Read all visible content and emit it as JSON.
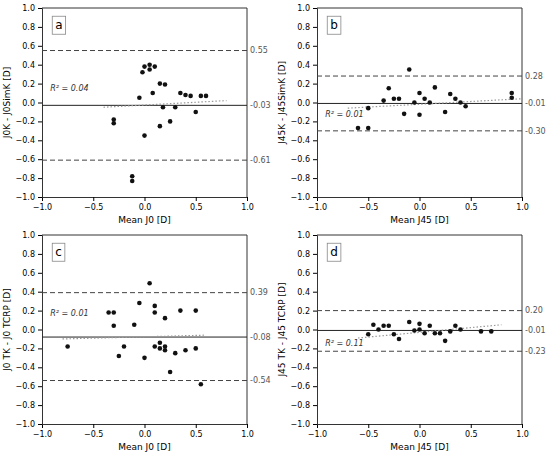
{
  "chart_data": [
    {
      "type": "scatter",
      "title": "a",
      "x_label": "Mean J0 [D]",
      "y_label": "J0K - J0SimK [D]",
      "x": [
        -0.3,
        -0.3,
        -0.05,
        -0.02,
        0.0,
        0.05,
        0.05,
        0.08,
        0.1,
        0.15,
        0.15,
        0.18,
        0.2,
        0.25,
        0.3,
        0.35,
        0.4,
        0.45,
        0.5,
        0.55,
        0.6,
        -0.12,
        -0.12,
        0.0
      ],
      "values": [
        -0.18,
        -0.22,
        0.05,
        0.32,
        0.38,
        0.4,
        0.35,
        0.1,
        0.38,
        0.2,
        -0.25,
        -0.05,
        0.19,
        -0.2,
        -0.05,
        0.1,
        0.08,
        0.07,
        -0.1,
        0.07,
        0.07,
        -0.78,
        -0.83,
        -0.35
      ],
      "color": "#111111",
      "reference_lines": [
        {
          "value": 0.55,
          "label": "0.55",
          "line_style": "dashed",
          "color": "#444444"
        },
        {
          "value": -0.03,
          "label": "-0.03",
          "line_style": "solid",
          "color": "#222222"
        },
        {
          "value": -0.61,
          "label": "-0.61",
          "line_style": "dashed",
          "color": "#444444"
        }
      ],
      "trend": {
        "x": [
          -0.4,
          0.8
        ],
        "values": [
          -0.05,
          0.02
        ],
        "line_style": "dotted",
        "color": "#999999"
      },
      "annotations": [
        {
          "text": "R² = 0.04",
          "x": -0.92,
          "y": 0.12
        }
      ],
      "xlim": [
        -1.0,
        1.0
      ],
      "ylim": [
        -1.0,
        1.0
      ],
      "xticks": [
        {
          "value": -1.0,
          "label": "−1.0"
        },
        {
          "value": -0.5,
          "label": "−0.5"
        },
        {
          "value": 0.0,
          "label": "0.0"
        },
        {
          "value": 0.5,
          "label": "0.5"
        },
        {
          "value": 1.0,
          "label": "1.0"
        }
      ],
      "yticks": [
        {
          "value": -1.0,
          "label": "−1.0"
        },
        {
          "value": -0.8,
          "label": "−0.8"
        },
        {
          "value": -0.6,
          "label": "−0.6"
        },
        {
          "value": -0.4,
          "label": "−0.4"
        },
        {
          "value": -0.2,
          "label": "−0.2"
        },
        {
          "value": 0.0,
          "label": "0.0"
        },
        {
          "value": 0.2,
          "label": "0.2"
        },
        {
          "value": 0.4,
          "label": "0.4"
        },
        {
          "value": 0.6,
          "label": "0.6"
        },
        {
          "value": 0.8,
          "label": "0.8"
        },
        {
          "value": 1.0,
          "label": "1.0"
        }
      ],
      "grid": false
    },
    {
      "type": "scatter",
      "title": "b",
      "x_label": "Mean J45 [D]",
      "y_label": "J45K - J45SimK [D]",
      "x": [
        -0.6,
        -0.5,
        -0.5,
        -0.35,
        -0.3,
        -0.25,
        -0.2,
        -0.15,
        -0.1,
        -0.05,
        0.0,
        0.0,
        0.05,
        0.1,
        0.15,
        0.25,
        0.3,
        0.35,
        0.4,
        0.45,
        0.9,
        0.9
      ],
      "values": [
        -0.27,
        -0.27,
        -0.06,
        0.02,
        0.15,
        0.04,
        0.04,
        -0.12,
        0.35,
        0.0,
        -0.13,
        0.1,
        0.04,
        0.0,
        0.16,
        -0.1,
        0.09,
        0.04,
        0.0,
        -0.04,
        0.1,
        0.05
      ],
      "color": "#111111",
      "reference_lines": [
        {
          "value": 0.28,
          "label": "0.28",
          "line_style": "dashed",
          "color": "#444444"
        },
        {
          "value": -0.01,
          "label": "-0.01",
          "line_style": "solid",
          "color": "#222222"
        },
        {
          "value": -0.3,
          "label": "-0.30",
          "line_style": "dashed",
          "color": "#444444"
        }
      ],
      "trend": {
        "x": [
          -0.7,
          1.0
        ],
        "values": [
          -0.06,
          0.04
        ],
        "line_style": "dotted",
        "color": "#999999"
      },
      "annotations": [
        {
          "text": "R² = 0.01",
          "x": -0.92,
          "y": -0.15
        }
      ],
      "xlim": [
        -1.0,
        1.0
      ],
      "ylim": [
        -1.0,
        1.0
      ],
      "xticks": [
        {
          "value": -1.0,
          "label": "−1.0"
        },
        {
          "value": -0.5,
          "label": "−0.5"
        },
        {
          "value": 0.0,
          "label": "0.0"
        },
        {
          "value": 0.5,
          "label": "0.5"
        },
        {
          "value": 1.0,
          "label": "1.0"
        }
      ],
      "yticks": [
        {
          "value": -1.0,
          "label": "−1.0"
        },
        {
          "value": -0.8,
          "label": "−0.8"
        },
        {
          "value": -0.6,
          "label": "−0.6"
        },
        {
          "value": -0.4,
          "label": "−0.4"
        },
        {
          "value": -0.2,
          "label": "−0.2"
        },
        {
          "value": 0.0,
          "label": "0.0"
        },
        {
          "value": 0.2,
          "label": "0.2"
        },
        {
          "value": 0.4,
          "label": "0.4"
        },
        {
          "value": 0.6,
          "label": "0.6"
        },
        {
          "value": 0.8,
          "label": "0.8"
        },
        {
          "value": 1.0,
          "label": "1.0"
        }
      ],
      "grid": false
    },
    {
      "type": "scatter",
      "title": "c",
      "x_label": "Mean J0 [D]",
      "y_label": "J0 TK - J0 TCRP [D]",
      "x": [
        -0.75,
        -0.35,
        -0.3,
        -0.3,
        -0.25,
        -0.2,
        -0.1,
        -0.05,
        0.0,
        0.05,
        0.1,
        0.1,
        0.15,
        0.15,
        0.2,
        0.2,
        0.2,
        0.25,
        0.3,
        0.35,
        0.4,
        0.5,
        0.5,
        0.55,
        0.1
      ],
      "values": [
        -0.18,
        0.18,
        0.18,
        0.04,
        -0.28,
        -0.18,
        0.05,
        0.28,
        -0.3,
        0.49,
        0.25,
        -0.18,
        -0.14,
        -0.2,
        -0.18,
        -0.22,
        0.12,
        -0.45,
        -0.25,
        0.2,
        -0.22,
        0.2,
        -0.2,
        -0.58,
        0.18
      ],
      "color": "#111111",
      "reference_lines": [
        {
          "value": 0.39,
          "label": "0.39",
          "line_style": "dashed",
          "color": "#444444"
        },
        {
          "value": -0.08,
          "label": "-0.08",
          "line_style": "solid",
          "color": "#222222"
        },
        {
          "value": -0.54,
          "label": "-0.54",
          "line_style": "dashed",
          "color": "#444444"
        }
      ],
      "trend": {
        "x": [
          -0.8,
          0.6
        ],
        "values": [
          -0.1,
          -0.06
        ],
        "line_style": "dotted",
        "color": "#999999"
      },
      "annotations": [
        {
          "text": "R² = 0.01",
          "x": -0.92,
          "y": 0.14
        }
      ],
      "xlim": [
        -1.0,
        1.0
      ],
      "ylim": [
        -1.0,
        1.0
      ],
      "xticks": [
        {
          "value": -1.0,
          "label": "−1.0"
        },
        {
          "value": -0.5,
          "label": "−0.5"
        },
        {
          "value": 0.0,
          "label": "0.0"
        },
        {
          "value": 0.5,
          "label": "0.5"
        },
        {
          "value": 1.0,
          "label": "1.0"
        }
      ],
      "yticks": [
        {
          "value": -1.0,
          "label": "−1.0"
        },
        {
          "value": -0.8,
          "label": "−0.8"
        },
        {
          "value": -0.6,
          "label": "−0.6"
        },
        {
          "value": -0.4,
          "label": "−0.4"
        },
        {
          "value": -0.2,
          "label": "−0.2"
        },
        {
          "value": 0.0,
          "label": "0.0"
        },
        {
          "value": 0.2,
          "label": "0.2"
        },
        {
          "value": 0.4,
          "label": "0.4"
        },
        {
          "value": 0.6,
          "label": "0.6"
        },
        {
          "value": 0.8,
          "label": "0.8"
        },
        {
          "value": 1.0,
          "label": "1.0"
        }
      ],
      "grid": false
    },
    {
      "type": "scatter",
      "title": "d",
      "x_label": "Mean J45 [D]",
      "y_label": "J45 TK - J45 TCRP [D]",
      "x": [
        -0.5,
        -0.45,
        -0.4,
        -0.35,
        -0.3,
        -0.25,
        -0.2,
        -0.1,
        -0.05,
        0.0,
        0.0,
        0.05,
        0.1,
        0.15,
        0.2,
        0.25,
        0.3,
        0.35,
        0.4,
        0.6,
        0.7
      ],
      "values": [
        -0.05,
        0.05,
        0.0,
        0.04,
        0.04,
        -0.05,
        -0.1,
        0.08,
        -0.01,
        0.0,
        0.06,
        -0.04,
        0.04,
        -0.04,
        -0.04,
        -0.12,
        -0.02,
        0.04,
        0.0,
        -0.02,
        -0.02
      ],
      "color": "#111111",
      "reference_lines": [
        {
          "value": 0.2,
          "label": "0.20",
          "line_style": "dashed",
          "color": "#444444"
        },
        {
          "value": -0.01,
          "label": "-0.01",
          "line_style": "solid",
          "color": "#222222"
        },
        {
          "value": -0.23,
          "label": "-0.23",
          "line_style": "dashed",
          "color": "#444444"
        }
      ],
      "trend": {
        "x": [
          -0.6,
          0.8
        ],
        "values": [
          -0.09,
          0.05
        ],
        "line_style": "dotted",
        "color": "#999999"
      },
      "annotations": [
        {
          "text": "R² = 0.11",
          "x": -0.92,
          "y": -0.17
        }
      ],
      "xlim": [
        -1.0,
        1.0
      ],
      "ylim": [
        -1.0,
        1.0
      ],
      "xticks": [
        {
          "value": -1.0,
          "label": "−1.0"
        },
        {
          "value": -0.5,
          "label": "−0.5"
        },
        {
          "value": 0.0,
          "label": "0.0"
        },
        {
          "value": 0.5,
          "label": "0.5"
        },
        {
          "value": 1.0,
          "label": "1.0"
        }
      ],
      "yticks": [
        {
          "value": -1.0,
          "label": "−1.0"
        },
        {
          "value": -0.8,
          "label": "−0.8"
        },
        {
          "value": -0.6,
          "label": "−0.6"
        },
        {
          "value": -0.4,
          "label": "−0.4"
        },
        {
          "value": -0.2,
          "label": "−0.2"
        },
        {
          "value": 0.0,
          "label": "0.0"
        },
        {
          "value": 0.2,
          "label": "0.2"
        },
        {
          "value": 0.4,
          "label": "0.4"
        },
        {
          "value": 0.6,
          "label": "0.6"
        },
        {
          "value": 0.8,
          "label": "0.8"
        },
        {
          "value": 1.0,
          "label": "1.0"
        }
      ],
      "grid": false
    }
  ]
}
